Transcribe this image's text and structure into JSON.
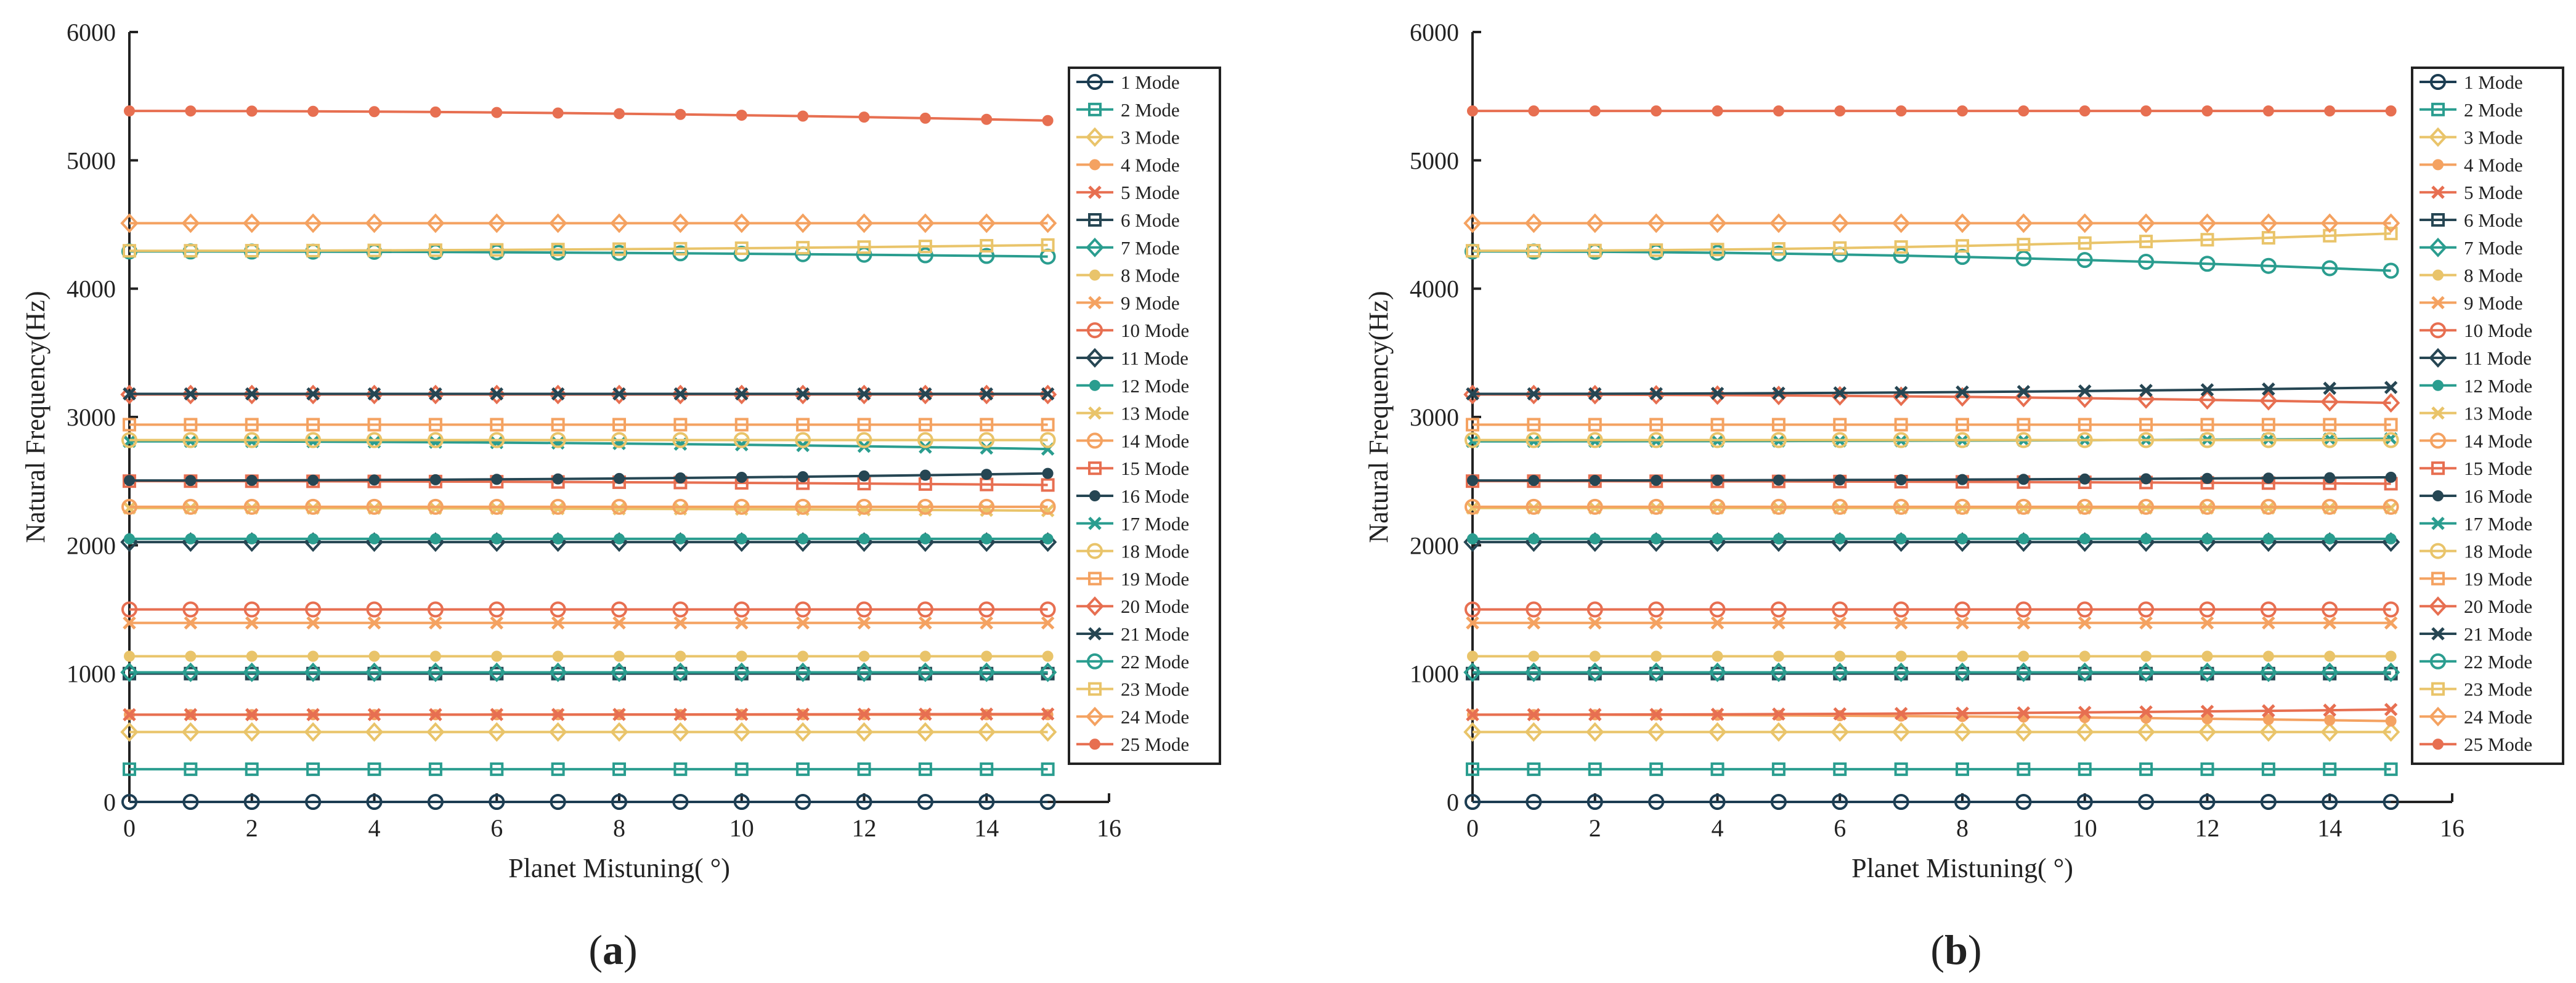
{
  "figure": {
    "x_axis_title": "Planet Mistuning( °)",
    "y_axis_title": "Natural Frequency(Hz)",
    "x_ticks": [
      "0",
      "2",
      "4",
      "6",
      "8",
      "10",
      "12",
      "14",
      "16"
    ],
    "y_ticks": [
      "0",
      "1000",
      "2000",
      "3000",
      "4000",
      "5000",
      "6000"
    ]
  },
  "chart_data": [
    {
      "panel": "a",
      "label_open": "(",
      "label_letter": "a",
      "label_close": ")",
      "type": "line",
      "xlabel": "Planet Mistuning( °)",
      "ylabel": "Natural Frequency(Hz)",
      "xlim": [
        0,
        16
      ],
      "ylim": [
        0,
        6000
      ],
      "x": [
        0,
        1,
        2,
        3,
        4,
        5,
        6,
        7,
        8,
        9,
        10,
        11,
        12,
        13,
        14,
        15
      ],
      "series": [
        {
          "name": "1 Mode",
          "color": "#1c3d52",
          "marker": "circle",
          "start": 0,
          "end": 0
        },
        {
          "name": "2 Mode",
          "color": "#2a9d8f",
          "marker": "square",
          "start": 255,
          "end": 255
        },
        {
          "name": "3 Mode",
          "color": "#e9c46a",
          "marker": "diamond",
          "start": 545,
          "end": 545
        },
        {
          "name": "4 Mode",
          "color": "#f4a261",
          "marker": "dot",
          "start": 680,
          "end": 680
        },
        {
          "name": "5 Mode",
          "color": "#e76f51",
          "marker": "x",
          "start": 680,
          "end": 685
        },
        {
          "name": "6 Mode",
          "color": "#264653",
          "marker": "square",
          "start": 1000,
          "end": 1000
        },
        {
          "name": "7 Mode",
          "color": "#2a9d8f",
          "marker": "diamond",
          "start": 1010,
          "end": 1010
        },
        {
          "name": "8 Mode",
          "color": "#e9c46a",
          "marker": "dot",
          "start": 1135,
          "end": 1135
        },
        {
          "name": "9 Mode",
          "color": "#f4a261",
          "marker": "x",
          "start": 1395,
          "end": 1395
        },
        {
          "name": "10 Mode",
          "color": "#e76f51",
          "marker": "circle",
          "start": 1500,
          "end": 1500
        },
        {
          "name": "11 Mode",
          "color": "#264653",
          "marker": "diamond",
          "start": 2025,
          "end": 2025
        },
        {
          "name": "12 Mode",
          "color": "#2a9d8f",
          "marker": "dot",
          "start": 2050,
          "end": 2050
        },
        {
          "name": "13 Mode",
          "color": "#e9c46a",
          "marker": "x",
          "start": 2290,
          "end": 2270
        },
        {
          "name": "14 Mode",
          "color": "#f4a261",
          "marker": "circle",
          "start": 2300,
          "end": 2300
        },
        {
          "name": "15 Mode",
          "color": "#e76f51",
          "marker": "square",
          "start": 2500,
          "end": 2470
        },
        {
          "name": "16 Mode",
          "color": "#264653",
          "marker": "dot",
          "start": 2505,
          "end": 2560
        },
        {
          "name": "17 Mode",
          "color": "#2a9d8f",
          "marker": "x",
          "start": 2810,
          "end": 2750
        },
        {
          "name": "18 Mode",
          "color": "#e9c46a",
          "marker": "circle",
          "start": 2820,
          "end": 2820
        },
        {
          "name": "19 Mode",
          "color": "#f4a261",
          "marker": "square",
          "start": 2940,
          "end": 2940
        },
        {
          "name": "20 Mode",
          "color": "#e76f51",
          "marker": "diamond",
          "start": 3175,
          "end": 3175
        },
        {
          "name": "21 Mode",
          "color": "#264653",
          "marker": "x",
          "start": 3180,
          "end": 3180
        },
        {
          "name": "22 Mode",
          "color": "#2a9d8f",
          "marker": "circle",
          "start": 4290,
          "end": 4250
        },
        {
          "name": "23 Mode",
          "color": "#e9c46a",
          "marker": "square",
          "start": 4295,
          "end": 4340
        },
        {
          "name": "24 Mode",
          "color": "#f4a261",
          "marker": "diamond",
          "start": 4510,
          "end": 4510
        },
        {
          "name": "25 Mode",
          "color": "#e76f51",
          "marker": "dot",
          "start": 5385,
          "end": 5310
        }
      ]
    },
    {
      "panel": "b",
      "label_open": "(",
      "label_letter": "b",
      "label_close": ")",
      "type": "line",
      "xlabel": "Planet Mistuning( °)",
      "ylabel": "Natural Frequency(Hz)",
      "xlim": [
        0,
        16
      ],
      "ylim": [
        0,
        6000
      ],
      "x": [
        0,
        1,
        2,
        3,
        4,
        5,
        6,
        7,
        8,
        9,
        10,
        11,
        12,
        13,
        14,
        15
      ],
      "series": [
        {
          "name": "1 Mode",
          "color": "#1c3d52",
          "marker": "circle",
          "start": 0,
          "end": 0
        },
        {
          "name": "2 Mode",
          "color": "#2a9d8f",
          "marker": "square",
          "start": 255,
          "end": 255
        },
        {
          "name": "3 Mode",
          "color": "#e9c46a",
          "marker": "diamond",
          "start": 545,
          "end": 545
        },
        {
          "name": "4 Mode",
          "color": "#f4a261",
          "marker": "dot",
          "start": 680,
          "end": 630
        },
        {
          "name": "5 Mode",
          "color": "#e76f51",
          "marker": "x",
          "start": 680,
          "end": 720
        },
        {
          "name": "6 Mode",
          "color": "#264653",
          "marker": "square",
          "start": 1000,
          "end": 1000
        },
        {
          "name": "7 Mode",
          "color": "#2a9d8f",
          "marker": "diamond",
          "start": 1010,
          "end": 1010
        },
        {
          "name": "8 Mode",
          "color": "#e9c46a",
          "marker": "dot",
          "start": 1135,
          "end": 1135
        },
        {
          "name": "9 Mode",
          "color": "#f4a261",
          "marker": "x",
          "start": 1395,
          "end": 1395
        },
        {
          "name": "10 Mode",
          "color": "#e76f51",
          "marker": "circle",
          "start": 1500,
          "end": 1500
        },
        {
          "name": "11 Mode",
          "color": "#264653",
          "marker": "diamond",
          "start": 2025,
          "end": 2025
        },
        {
          "name": "12 Mode",
          "color": "#2a9d8f",
          "marker": "dot",
          "start": 2050,
          "end": 2050
        },
        {
          "name": "13 Mode",
          "color": "#e9c46a",
          "marker": "x",
          "start": 2290,
          "end": 2290
        },
        {
          "name": "14 Mode",
          "color": "#f4a261",
          "marker": "circle",
          "start": 2300,
          "end": 2300
        },
        {
          "name": "15 Mode",
          "color": "#e76f51",
          "marker": "square",
          "start": 2500,
          "end": 2480
        },
        {
          "name": "16 Mode",
          "color": "#264653",
          "marker": "dot",
          "start": 2505,
          "end": 2530
        },
        {
          "name": "17 Mode",
          "color": "#2a9d8f",
          "marker": "x",
          "start": 2810,
          "end": 2830
        },
        {
          "name": "18 Mode",
          "color": "#e9c46a",
          "marker": "circle",
          "start": 2820,
          "end": 2820
        },
        {
          "name": "19 Mode",
          "color": "#f4a261",
          "marker": "square",
          "start": 2940,
          "end": 2940
        },
        {
          "name": "20 Mode",
          "color": "#e76f51",
          "marker": "diamond",
          "start": 3175,
          "end": 3110
        },
        {
          "name": "21 Mode",
          "color": "#264653",
          "marker": "x",
          "start": 3180,
          "end": 3230
        },
        {
          "name": "22 Mode",
          "color": "#2a9d8f",
          "marker": "circle",
          "start": 4290,
          "end": 4140
        },
        {
          "name": "23 Mode",
          "color": "#e9c46a",
          "marker": "square",
          "start": 4295,
          "end": 4430
        },
        {
          "name": "24 Mode",
          "color": "#f4a261",
          "marker": "diamond",
          "start": 4510,
          "end": 4510
        },
        {
          "name": "25 Mode",
          "color": "#e76f51",
          "marker": "dot",
          "start": 5385,
          "end": 5385
        }
      ]
    }
  ]
}
